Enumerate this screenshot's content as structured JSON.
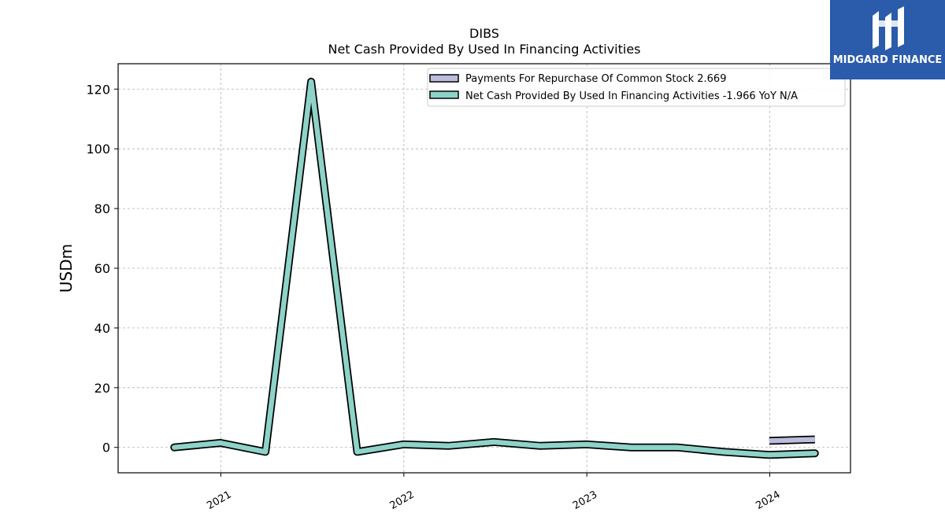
{
  "logo": {
    "name": "midgard-logo-icon",
    "text": "MIDGARD FINANCE"
  },
  "chart_data": {
    "type": "line",
    "title": "DIBS",
    "subtitle": "Net Cash Provided By Used In Financing Activities",
    "xlabel": "",
    "ylabel": "USDm",
    "xlim": [
      "2020-06-10",
      "2024-06-10"
    ],
    "ylim": [
      -8.5,
      128.5
    ],
    "yticks": [
      0,
      20,
      40,
      60,
      80,
      100,
      120
    ],
    "xticks": [
      {
        "label": "2021",
        "date": "2021-01-01"
      },
      {
        "label": "2022",
        "date": "2022-01-01"
      },
      {
        "label": "2023",
        "date": "2023-01-01"
      },
      {
        "label": "2024",
        "date": "2024-01-01"
      }
    ],
    "grid": true,
    "legend_position": "top-right",
    "series": [
      {
        "name": "Payments For Repurchase Of Common Stock",
        "legend_label": "Payments For Repurchase Of Common Stock  2.669",
        "color": "#bcbddc",
        "x": [
          "2023-12-31",
          "2024-03-31"
        ],
        "values": [
          2.2,
          2.669
        ]
      },
      {
        "name": "Net Cash Provided By Used In Financing Activities",
        "legend_label": "Net Cash Provided By Used In Financing Activities  -1.966 YoY N/A",
        "color": "#8dd3c7",
        "x": [
          "2020-09-30",
          "2020-12-31",
          "2021-03-31",
          "2021-06-30",
          "2021-09-30",
          "2021-12-31",
          "2022-03-31",
          "2022-06-30",
          "2022-09-30",
          "2022-12-31",
          "2023-03-31",
          "2023-06-30",
          "2023-09-30",
          "2023-12-31",
          "2024-03-31"
        ],
        "values": [
          0,
          1.5,
          -1.5,
          122.5,
          -1.5,
          1,
          0.5,
          1.8,
          0.5,
          1,
          0,
          0,
          -1.5,
          -2.5,
          -1.966
        ]
      }
    ]
  }
}
